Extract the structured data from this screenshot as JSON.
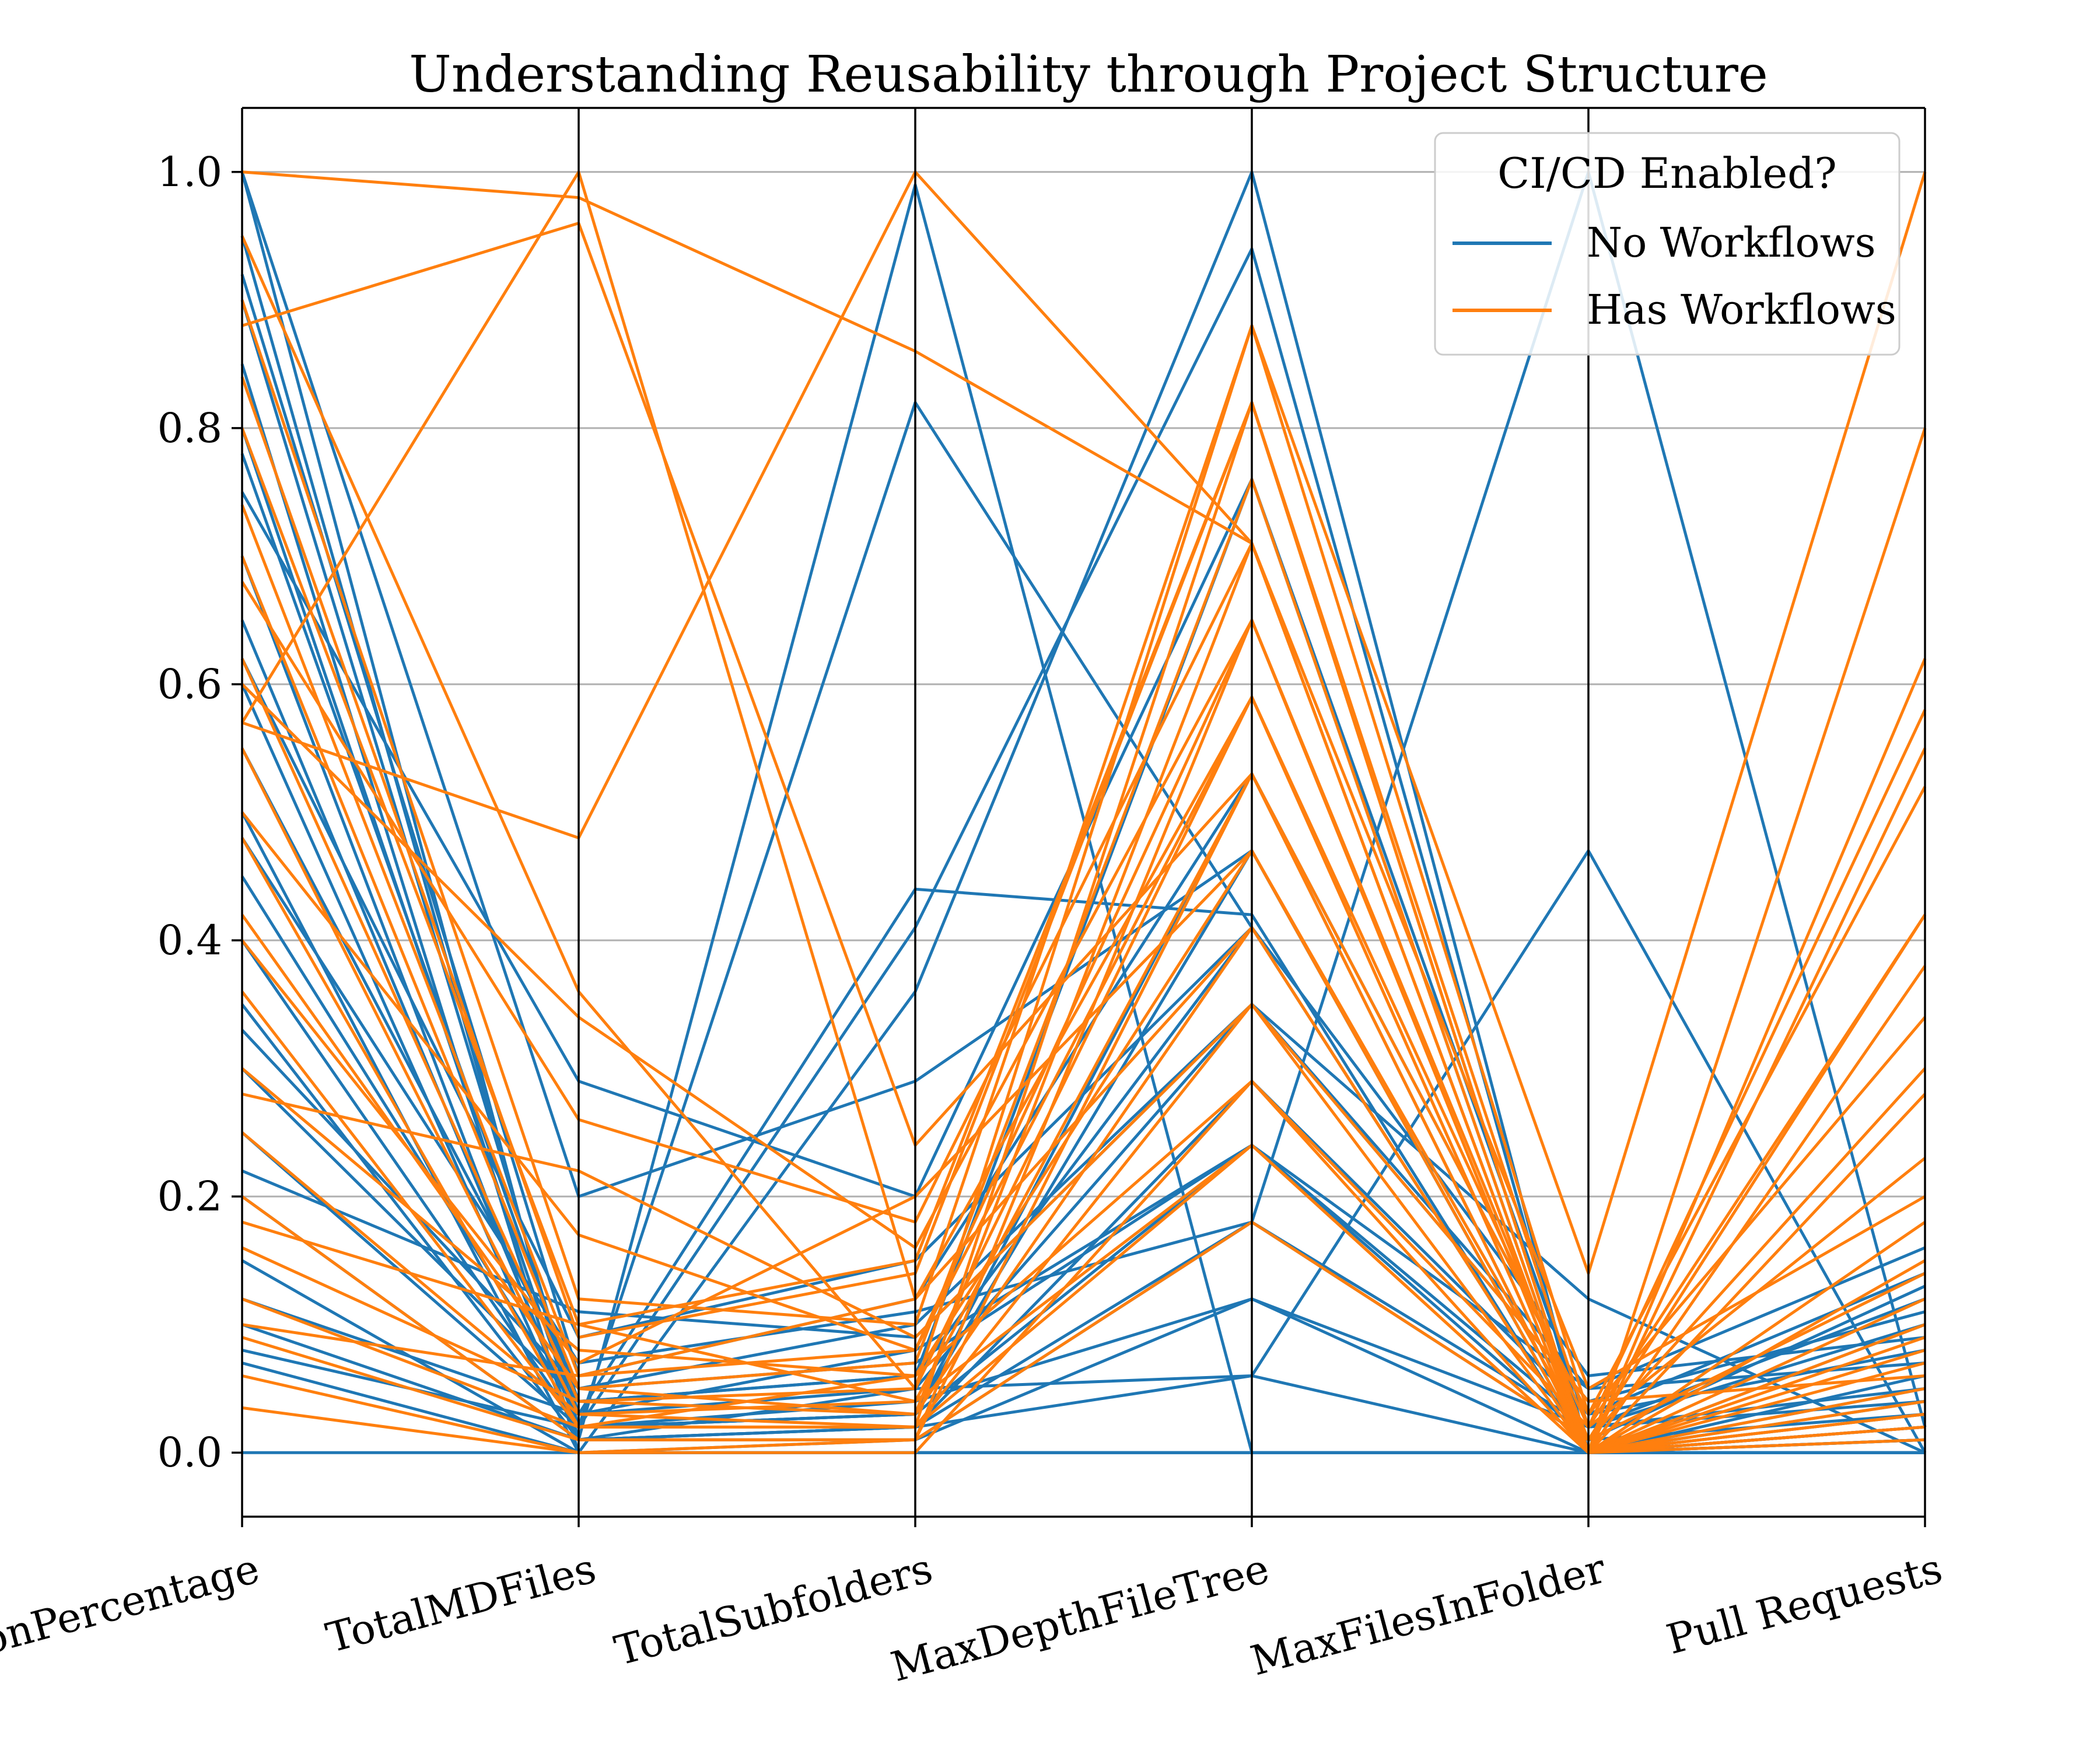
{
  "chart_data": {
    "type": "parallel-coordinates",
    "title": "Understanding Reusability through Project Structure",
    "axes": [
      "CohesionPercentage",
      "TotalMDFiles",
      "TotalSubfolders",
      "MaxDepthFileTree",
      "MaxFilesInFolder",
      "Pull Requests"
    ],
    "ylim": [
      -0.05,
      1.05
    ],
    "yticks": [
      "0.0",
      "0.2",
      "0.4",
      "0.6",
      "0.8",
      "1.0"
    ],
    "grid": true,
    "legend": {
      "title": "CI/CD Enabled?",
      "placement": "top-right",
      "entries": [
        "No Workflows",
        "Has Workflows"
      ]
    },
    "colors": {
      "no_workflows": "#1f77b4",
      "has_workflows": "#ff7f0e"
    },
    "series": [
      {
        "name": "No Workflows",
        "lines": [
          [
            1.0,
            0.01,
            0.99,
            0.0,
            0.0,
            0.0
          ],
          [
            1.0,
            0.2,
            0.29,
            0.47,
            0.0,
            0.02
          ],
          [
            0.95,
            0.02,
            0.82,
            0.41,
            0.0,
            0.01
          ],
          [
            0.9,
            0.03,
            0.44,
            0.42,
            0.0,
            0.03
          ],
          [
            0.85,
            0.0,
            0.36,
            1.0,
            0.0,
            0.02
          ],
          [
            0.8,
            0.02,
            0.41,
            0.94,
            0.0,
            0.01
          ],
          [
            0.75,
            0.29,
            0.2,
            0.76,
            0.0,
            0.04
          ],
          [
            0.7,
            0.01,
            0.05,
            0.06,
            0.47,
            0.0
          ],
          [
            0.65,
            0.02,
            0.03,
            0.53,
            0.0,
            0.05
          ],
          [
            0.6,
            0.01,
            0.02,
            0.18,
            1.0,
            0.02
          ],
          [
            0.55,
            0.05,
            0.1,
            0.35,
            0.12,
            0.0
          ],
          [
            0.5,
            0.0,
            0.0,
            0.0,
            0.0,
            0.0
          ],
          [
            0.45,
            0.03,
            0.08,
            0.24,
            0.05,
            0.16
          ],
          [
            0.4,
            0.02,
            0.04,
            0.12,
            0.02,
            0.12
          ],
          [
            0.35,
            0.01,
            0.02,
            0.29,
            0.03,
            0.08
          ],
          [
            0.3,
            0.04,
            0.06,
            0.41,
            0.0,
            0.1
          ],
          [
            0.25,
            0.02,
            0.03,
            0.47,
            0.0,
            0.06
          ],
          [
            0.2,
            0.01,
            0.01,
            0.18,
            0.02,
            0.04
          ],
          [
            0.15,
            0.0,
            0.01,
            0.12,
            0.0,
            0.02
          ],
          [
            0.12,
            0.03,
            0.05,
            0.35,
            0.04,
            0.11
          ],
          [
            0.1,
            0.01,
            0.02,
            0.06,
            0.0,
            0.01
          ],
          [
            0.08,
            0.02,
            0.03,
            0.24,
            0.01,
            0.03
          ],
          [
            0.07,
            0.0,
            0.0,
            0.0,
            0.0,
            0.0
          ],
          [
            0.0,
            0.0,
            0.0,
            0.0,
            0.0,
            0.0
          ],
          [
            0.92,
            0.06,
            0.12,
            0.53,
            0.03,
            0.14
          ],
          [
            0.62,
            0.09,
            0.15,
            0.41,
            0.06,
            0.09
          ],
          [
            0.33,
            0.05,
            0.07,
            0.24,
            0.02,
            0.05
          ],
          [
            0.22,
            0.11,
            0.09,
            0.35,
            0.05,
            0.07
          ],
          [
            0.48,
            0.07,
            0.11,
            0.18,
            0.01,
            0.13
          ],
          [
            0.78,
            0.04,
            0.06,
            0.76,
            0.02,
            0.1
          ]
        ]
      },
      {
        "name": "Has Workflows",
        "lines": [
          [
            1.0,
            0.98,
            0.86,
            0.71,
            0.0,
            0.02
          ],
          [
            0.88,
            0.96,
            0.24,
            0.53,
            0.0,
            0.03
          ],
          [
            0.57,
            1.0,
            0.12,
            0.59,
            0.0,
            0.04
          ],
          [
            0.57,
            0.48,
            1.0,
            0.71,
            0.0,
            0.02
          ],
          [
            0.95,
            0.36,
            0.05,
            0.88,
            0.14,
            1.0
          ],
          [
            0.8,
            0.1,
            0.15,
            0.82,
            0.0,
            0.8
          ],
          [
            0.74,
            0.06,
            0.08,
            0.65,
            0.0,
            0.62
          ],
          [
            0.62,
            0.04,
            0.05,
            0.59,
            0.02,
            0.58
          ],
          [
            0.55,
            0.03,
            0.04,
            0.53,
            0.03,
            0.52
          ],
          [
            0.48,
            0.02,
            0.06,
            0.47,
            0.01,
            0.42
          ],
          [
            0.42,
            0.05,
            0.03,
            0.41,
            0.0,
            0.38
          ],
          [
            0.36,
            0.02,
            0.02,
            0.35,
            0.0,
            0.28
          ],
          [
            0.3,
            0.08,
            0.06,
            0.29,
            0.02,
            0.23
          ],
          [
            0.25,
            0.03,
            0.02,
            0.24,
            0.0,
            0.18
          ],
          [
            0.2,
            0.01,
            0.01,
            0.18,
            0.01,
            0.14
          ],
          [
            0.16,
            0.04,
            0.03,
            0.71,
            0.0,
            0.1
          ],
          [
            0.12,
            0.02,
            0.02,
            0.82,
            0.0,
            0.07
          ],
          [
            0.09,
            0.01,
            0.01,
            0.65,
            0.0,
            0.05
          ],
          [
            0.06,
            0.0,
            0.01,
            0.53,
            0.0,
            0.03
          ],
          [
            0.035,
            0.0,
            0.0,
            0.29,
            0.0,
            0.01
          ],
          [
            0.9,
            0.12,
            0.1,
            0.88,
            0.03,
            0.34
          ],
          [
            0.68,
            0.26,
            0.18,
            0.71,
            0.05,
            0.2
          ],
          [
            0.5,
            0.17,
            0.08,
            0.59,
            0.0,
            0.12
          ],
          [
            0.4,
            0.07,
            0.2,
            0.47,
            0.0,
            0.08
          ],
          [
            0.28,
            0.22,
            0.09,
            0.35,
            0.04,
            0.06
          ],
          [
            0.84,
            0.09,
            0.14,
            0.82,
            0.02,
            0.42
          ],
          [
            0.7,
            0.05,
            0.07,
            0.76,
            0.0,
            0.55
          ],
          [
            0.18,
            0.1,
            0.04,
            0.24,
            0.0,
            0.15
          ],
          [
            0.6,
            0.34,
            0.16,
            0.65,
            0.01,
            0.3
          ],
          [
            0.1,
            0.06,
            0.12,
            0.41,
            0.0,
            0.09
          ]
        ]
      }
    ]
  }
}
